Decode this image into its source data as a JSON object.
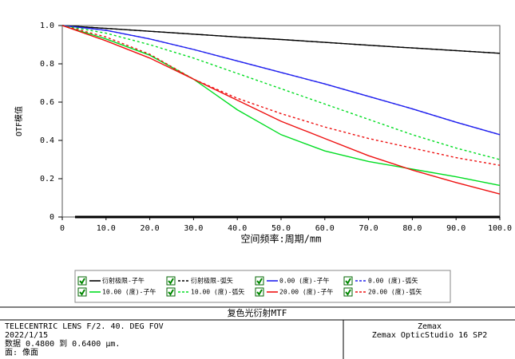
{
  "chart_data": {
    "type": "line",
    "title": "复色光衍射MTF",
    "x_label": "空间频率:周期/mm",
    "y_label": "OTF模值",
    "x": [
      0,
      10,
      20,
      30,
      40,
      50,
      60,
      70,
      80,
      90,
      100
    ],
    "xlim": [
      0,
      100
    ],
    "ylim": [
      0,
      1
    ],
    "xticks": [
      0,
      {
        "value": 10,
        "label": "10.0"
      },
      {
        "value": 20,
        "label": "20.0"
      },
      {
        "value": 30,
        "label": "30.0"
      },
      {
        "value": 40,
        "label": "40.0"
      },
      {
        "value": 50,
        "label": "50.0"
      },
      {
        "value": 60,
        "label": "60.0"
      },
      {
        "value": 70,
        "label": "70.0"
      },
      {
        "value": 80,
        "label": "80.0"
      },
      {
        "value": 90,
        "label": "90.0"
      },
      {
        "value": 100,
        "label": "100.0"
      }
    ],
    "yticks": [
      0,
      0.2,
      0.4,
      0.6,
      0.8,
      {
        "value": 1,
        "label": "1.0"
      }
    ],
    "series": [
      {
        "name": "衍射极限-子午",
        "color": "#000000",
        "style": "solid",
        "values": [
          1,
          0.985,
          0.97,
          0.955,
          0.94,
          0.927,
          0.912,
          0.897,
          0.883,
          0.869,
          0.855
        ]
      },
      {
        "name": "衍射极限-弧矢",
        "color": "#000000",
        "style": "dashed",
        "values": [
          1,
          0.985,
          0.97,
          0.955,
          0.94,
          0.927,
          0.912,
          0.897,
          0.883,
          0.869,
          0.855
        ]
      },
      {
        "name": "0.00 (度)-子午",
        "color": "#2222ee",
        "style": "solid",
        "values": [
          1,
          0.975,
          0.93,
          0.875,
          0.815,
          0.755,
          0.695,
          0.63,
          0.565,
          0.495,
          0.43
        ]
      },
      {
        "name": "0.00 (度)-弧矢",
        "color": "#2222ee",
        "style": "dashed",
        "values": [
          1,
          0.975,
          0.93,
          0.875,
          0.815,
          0.755,
          0.695,
          0.63,
          0.565,
          0.495,
          0.43
        ]
      },
      {
        "name": "10.00 (度)-子午",
        "color": "#00dd22",
        "style": "solid",
        "values": [
          1,
          0.93,
          0.845,
          0.72,
          0.56,
          0.43,
          0.345,
          0.29,
          0.25,
          0.21,
          0.165
        ]
      },
      {
        "name": "10.00 (度)-弧矢",
        "color": "#00dd22",
        "style": "dashed",
        "values": [
          1,
          0.96,
          0.9,
          0.83,
          0.75,
          0.67,
          0.59,
          0.51,
          0.43,
          0.36,
          0.3
        ]
      },
      {
        "name": "20.00 (度)-子午",
        "color": "#ee1111",
        "style": "solid",
        "values": [
          1,
          0.92,
          0.83,
          0.72,
          0.61,
          0.5,
          0.41,
          0.32,
          0.245,
          0.18,
          0.12
        ]
      },
      {
        "name": "20.00 (度)-弧矢",
        "color": "#ee1111",
        "style": "dashed",
        "values": [
          1,
          0.94,
          0.85,
          0.72,
          0.62,
          0.54,
          0.47,
          0.41,
          0.36,
          0.31,
          0.27
        ]
      }
    ]
  },
  "footer": {
    "left": [
      "TELECENTRIC LENS F/2.  40. DEG FOV",
      "2022/1/15",
      "数据 0.4800 到 0.6400 µm.",
      "面: 像面"
    ],
    "right": [
      "Zemax",
      "Zemax OpticStudio 16 SP2"
    ]
  }
}
